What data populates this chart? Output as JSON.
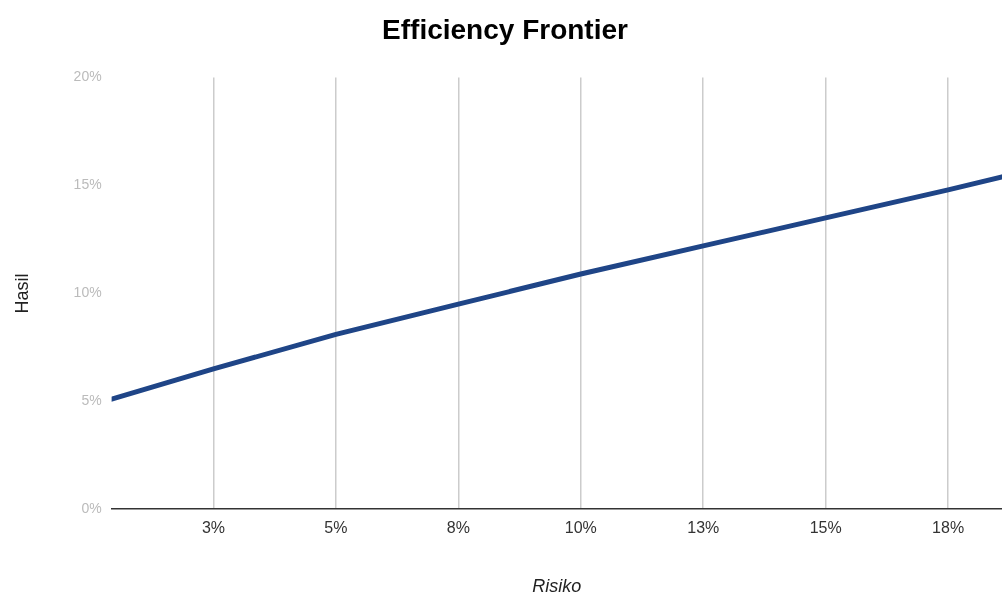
{
  "chart_data": {
    "type": "line",
    "title": "Efficiency Frontier",
    "xlabel": "Risiko",
    "ylabel": "Hasil",
    "x": [
      0.42,
      2.5,
      5,
      7.5,
      10,
      12.5,
      15,
      17.5,
      18.6
    ],
    "series": [
      {
        "color": "#1f4587",
        "values": [
          5.1,
          6.5,
          8.1,
          9.5,
          10.9,
          12.2,
          13.5,
          14.8,
          15.4
        ]
      }
    ],
    "xlim": [
      0.42,
      18.6
    ],
    "xticks": [
      {
        "value": 2.5,
        "label": "3%"
      },
      {
        "value": 5,
        "label": "5%"
      },
      {
        "value": 7.5,
        "label": "8%"
      },
      {
        "value": 10,
        "label": "10%"
      },
      {
        "value": 12.5,
        "label": "13%"
      },
      {
        "value": 15,
        "label": "15%"
      },
      {
        "value": 17.5,
        "label": "18%"
      }
    ],
    "ylim": [
      0,
      20
    ],
    "yticks": [
      {
        "value": 0,
        "label": "0%"
      },
      {
        "value": 5,
        "label": "5%"
      },
      {
        "value": 10,
        "label": "10%"
      },
      {
        "value": 15,
        "label": "15%"
      },
      {
        "value": 20,
        "label": "20%"
      }
    ],
    "grid": "x",
    "legend": false,
    "marker": "none",
    "line_style": "solid"
  }
}
